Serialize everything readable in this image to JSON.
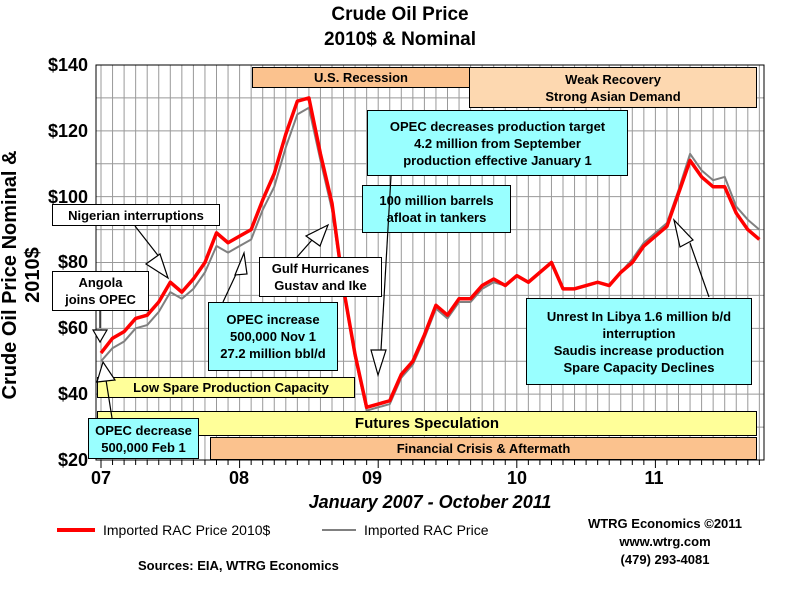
{
  "colors": {
    "nominal_2010": "#ff0000",
    "nominal": "#808080",
    "callout": "#99ffff",
    "period_yellow": "#ffff99",
    "period_orange": "#fbc28e",
    "period_peach": "#fdd8b0"
  },
  "chart_data": {
    "type": "line",
    "title": "Crude Oil Price",
    "subtitle": "2010$ & Nominal",
    "ylabel": "Crude Oil Price Nominal & 2010$",
    "xlabel": "January 2007 - October 2011",
    "ylim": [
      20,
      140
    ],
    "yticks": [
      "$140",
      "$120",
      "$100",
      "$80",
      "$60",
      "$40",
      "$20"
    ],
    "xticks": [
      "07",
      "08",
      "09",
      "10",
      "11"
    ],
    "grid": true,
    "x_start": "2007-01",
    "x_end": "2011-10",
    "x_frequency": "monthly",
    "series": [
      {
        "name": "Imported RAC Price 2010$",
        "color": "#ff0000",
        "values": [
          52.5,
          57,
          59,
          63,
          64,
          68,
          74,
          71,
          75,
          80,
          89,
          86,
          88,
          90,
          99,
          107,
          119,
          129,
          130,
          113,
          98,
          72,
          52,
          36,
          37,
          38,
          46,
          50,
          58,
          67,
          64,
          69,
          69,
          73,
          75,
          73,
          76,
          74,
          77,
          80,
          72,
          72,
          73,
          74,
          73,
          77,
          80,
          85,
          88,
          91,
          101,
          111,
          106,
          103,
          103,
          95,
          90,
          87
        ]
      },
      {
        "name": "Imported RAC Price",
        "color": "#808080",
        "values": [
          50,
          54,
          56,
          60,
          61,
          65,
          71,
          69,
          72,
          77,
          85,
          83,
          85,
          87,
          96,
          103,
          115,
          125,
          127,
          111,
          96,
          71,
          51,
          35,
          36,
          37,
          45,
          49,
          57,
          66,
          63,
          68,
          68,
          72,
          74,
          73,
          76,
          74,
          77,
          80,
          72,
          72,
          73,
          74,
          73,
          77,
          81,
          86,
          89,
          92,
          102,
          113,
          108,
          105,
          106,
          97,
          93,
          90
        ]
      }
    ],
    "legend_placement": "bottom"
  },
  "annotations": {
    "us_recession": "U.S. Recession",
    "weak_recovery": [
      "Weak Recovery",
      "Strong Asian Demand"
    ],
    "opec_target": [
      "OPEC decreases production target",
      "4.2 million from September",
      "production effective January 1"
    ],
    "barrels_afloat": [
      "100 million barrels",
      "afloat in tankers"
    ],
    "nigerian": "Nigerian interruptions",
    "angola": [
      "Angola",
      "joins OPEC"
    ],
    "gulf": [
      "Gulf Hurricanes",
      "Gustav and Ike"
    ],
    "opec_increase": [
      "OPEC increase",
      "500,000 Nov 1",
      "27.2 million bbl/d"
    ],
    "libya": [
      "Unrest In Libya 1.6 million b/d",
      "interruption",
      "Saudis increase production",
      "Spare Capacity Declines"
    ],
    "low_spare": "Low Spare Production Capacity",
    "futures": "Futures Speculation",
    "opec_decrease": [
      "OPEC decrease",
      "500,000 Feb 1"
    ],
    "financial_crisis": "Financial Crisis & Aftermath"
  },
  "credits": {
    "company": "WTRG Economics  ©2011",
    "site": "www.wtrg.com",
    "phone": "(479) 293-4081",
    "sources": "Sources: EIA, WTRG Economics"
  }
}
